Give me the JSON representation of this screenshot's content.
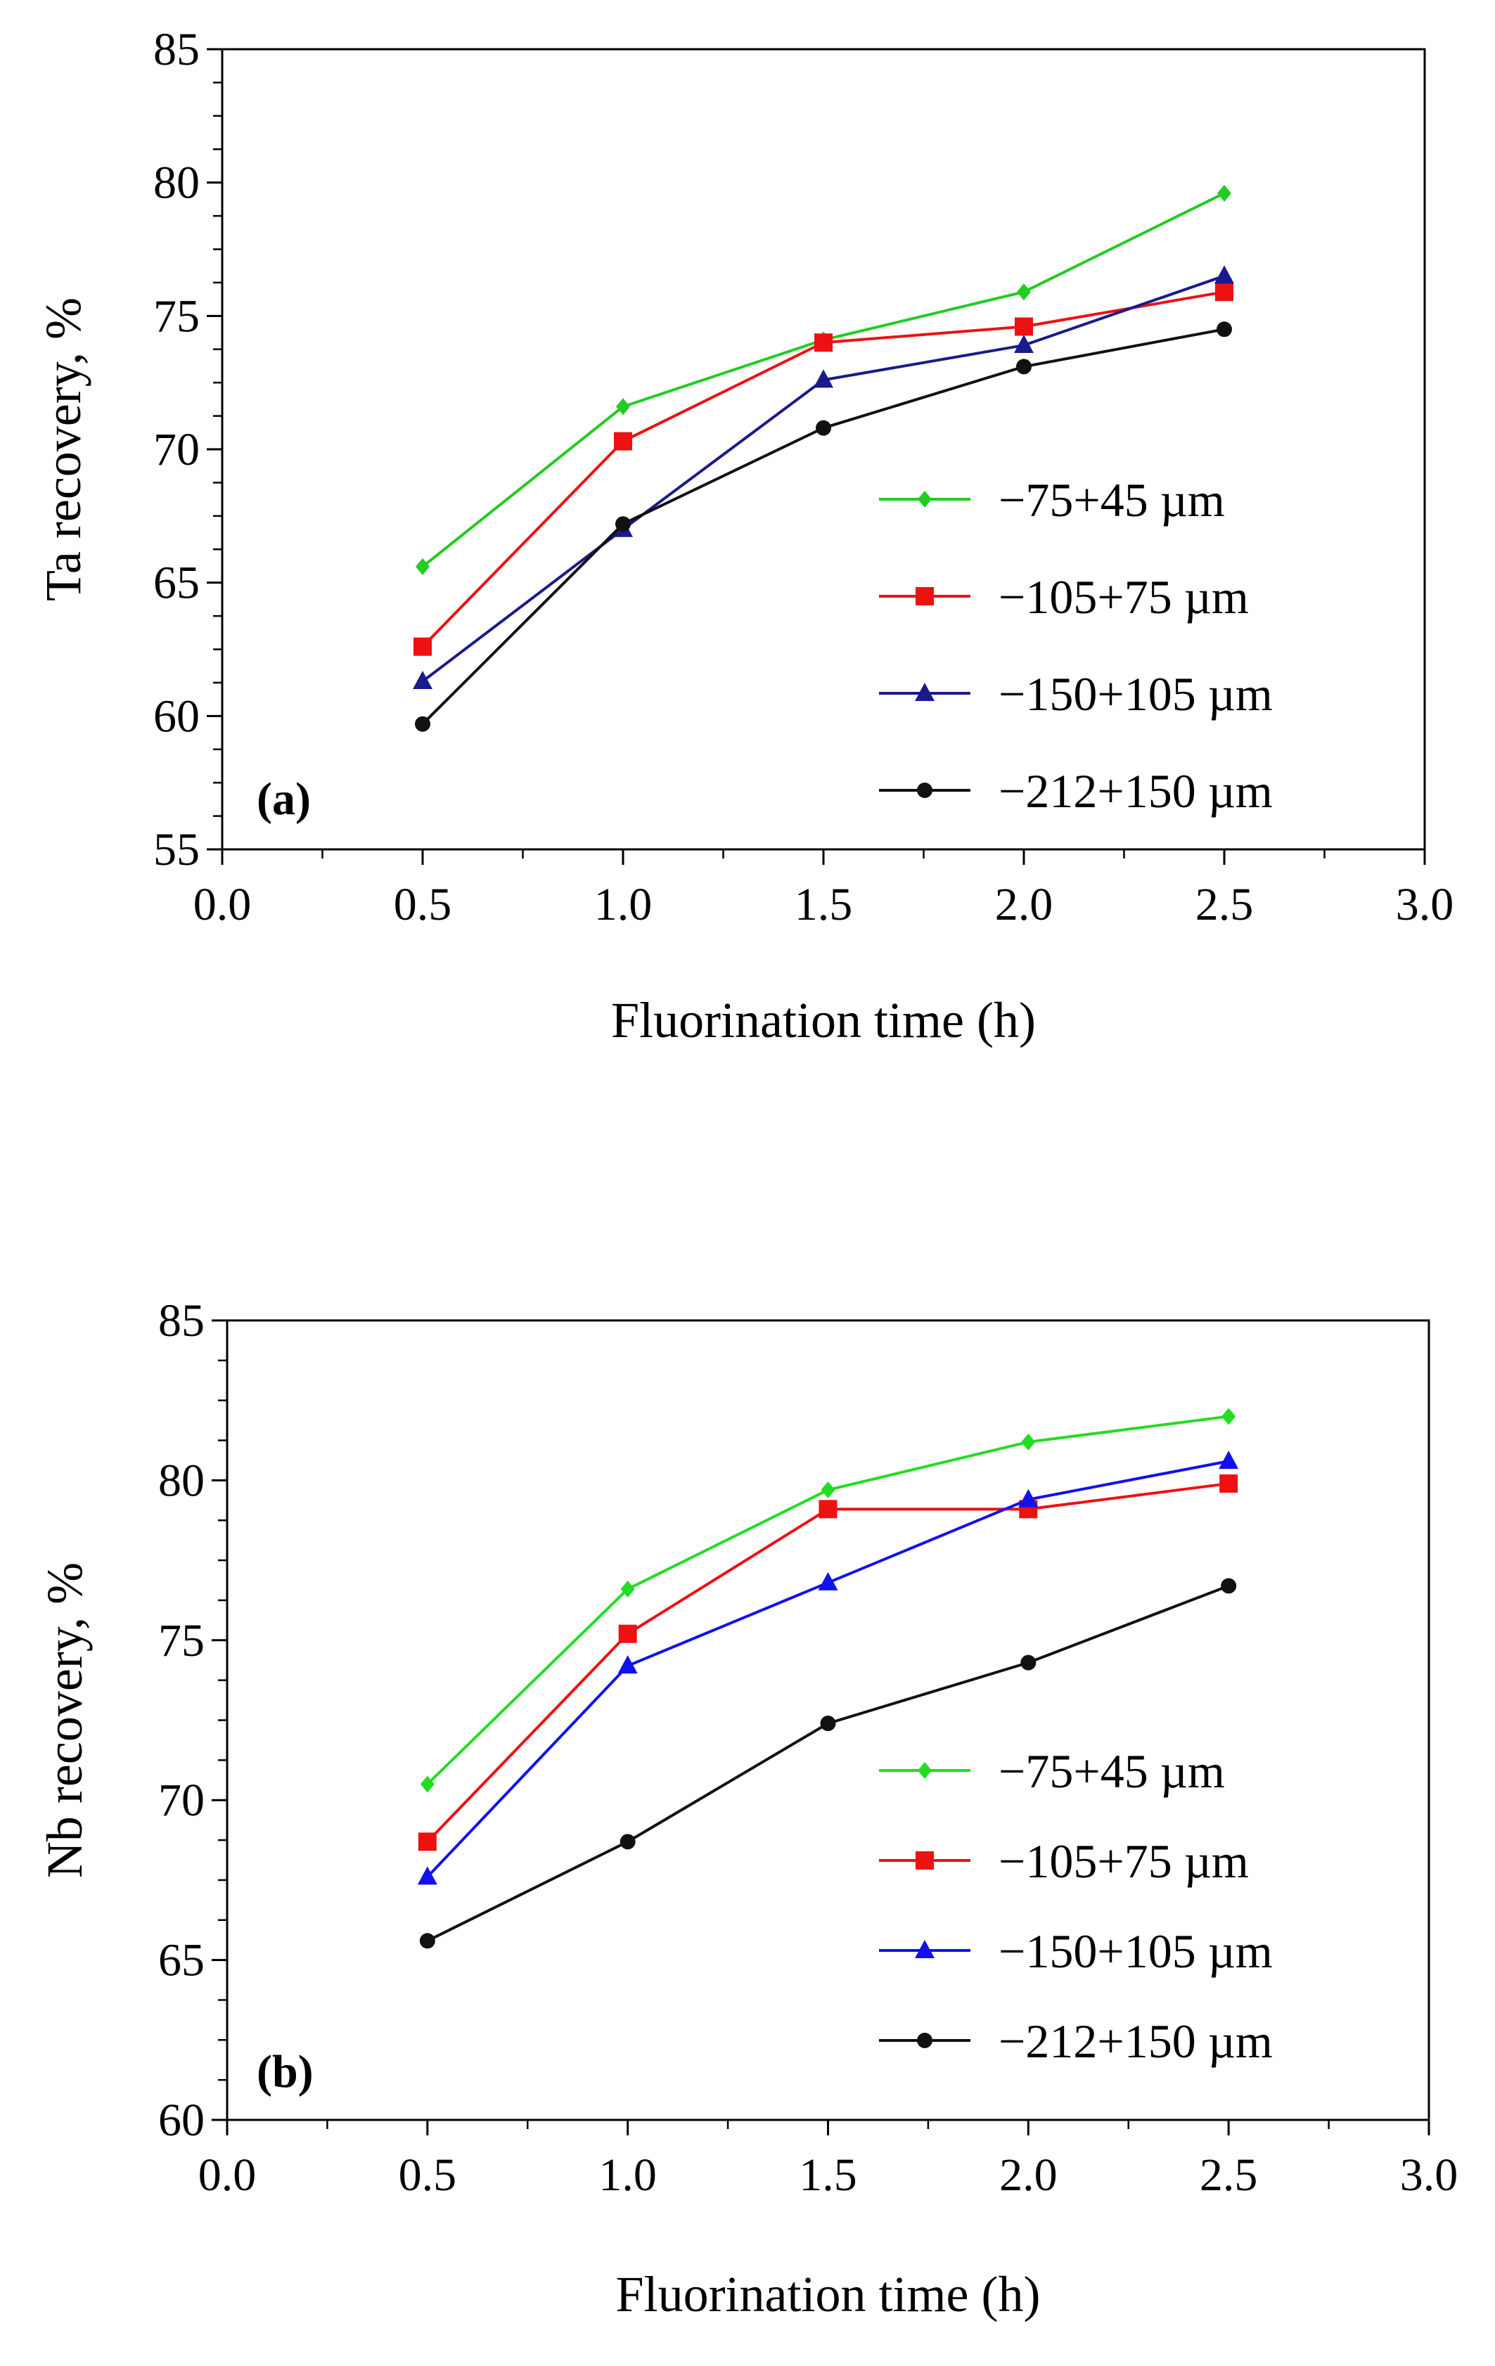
{
  "chart_data": [
    {
      "type": "line",
      "panel_label": "(a)",
      "title": "",
      "xlabel": "Fluorination time (h)",
      "ylabel": "Ta recovery, %",
      "xlim": [
        0.0,
        3.0
      ],
      "ylim": [
        55,
        85
      ],
      "xticks": [
        "0.0",
        "0.5",
        "1.0",
        "1.5",
        "2.0",
        "2.5",
        "3.0"
      ],
      "yticks": [
        "55",
        "60",
        "65",
        "70",
        "75",
        "80",
        "85"
      ],
      "grid": false,
      "legend_position": "right-middle",
      "x": [
        0.5,
        1.0,
        1.5,
        2.0,
        2.5
      ],
      "series": [
        {
          "name": "−75+45 µm",
          "color": "#22cc22",
          "marker": "diamond",
          "values": [
            65.6,
            71.6,
            74.1,
            75.9,
            79.6
          ]
        },
        {
          "name": "−105+75 µm",
          "color": "#ee1111",
          "marker": "square",
          "values": [
            62.6,
            70.3,
            74.0,
            74.6,
            75.9
          ]
        },
        {
          "name": "−150+105 µm",
          "color": "#1a1a8c",
          "marker": "triangle",
          "values": [
            61.3,
            67.0,
            72.6,
            73.9,
            76.5
          ]
        },
        {
          "name": "−212+150 µm",
          "color": "#111111",
          "marker": "circle",
          "values": [
            59.7,
            67.2,
            70.8,
            73.1,
            74.5
          ]
        }
      ]
    },
    {
      "type": "line",
      "panel_label": "(b)",
      "title": "",
      "xlabel": "Fluorination time (h)",
      "ylabel": "Nb recovery, %",
      "xlim": [
        0.0,
        3.0
      ],
      "ylim": [
        60,
        85
      ],
      "xticks": [
        "0.0",
        "0.5",
        "1.0",
        "1.5",
        "2.0",
        "2.5",
        "3.0"
      ],
      "yticks": [
        "60",
        "65",
        "70",
        "75",
        "80",
        "85"
      ],
      "grid": false,
      "legend_position": "right-middle",
      "x": [
        0.5,
        1.0,
        1.5,
        2.0,
        2.5
      ],
      "series": [
        {
          "name": "−75+45 µm",
          "color": "#22dd22",
          "marker": "diamond",
          "values": [
            70.5,
            76.6,
            79.7,
            81.2,
            82.0
          ]
        },
        {
          "name": "−105+75 µm",
          "color": "#ee1111",
          "marker": "square",
          "values": [
            68.7,
            75.2,
            79.1,
            79.1,
            79.9
          ]
        },
        {
          "name": "−150+105 µm",
          "color": "#1111ee",
          "marker": "triangle",
          "values": [
            67.6,
            74.2,
            76.8,
            79.4,
            80.6
          ]
        },
        {
          "name": "−212+150 µm",
          "color": "#111111",
          "marker": "circle",
          "values": [
            65.6,
            68.7,
            72.4,
            74.3,
            76.7
          ]
        }
      ]
    }
  ]
}
